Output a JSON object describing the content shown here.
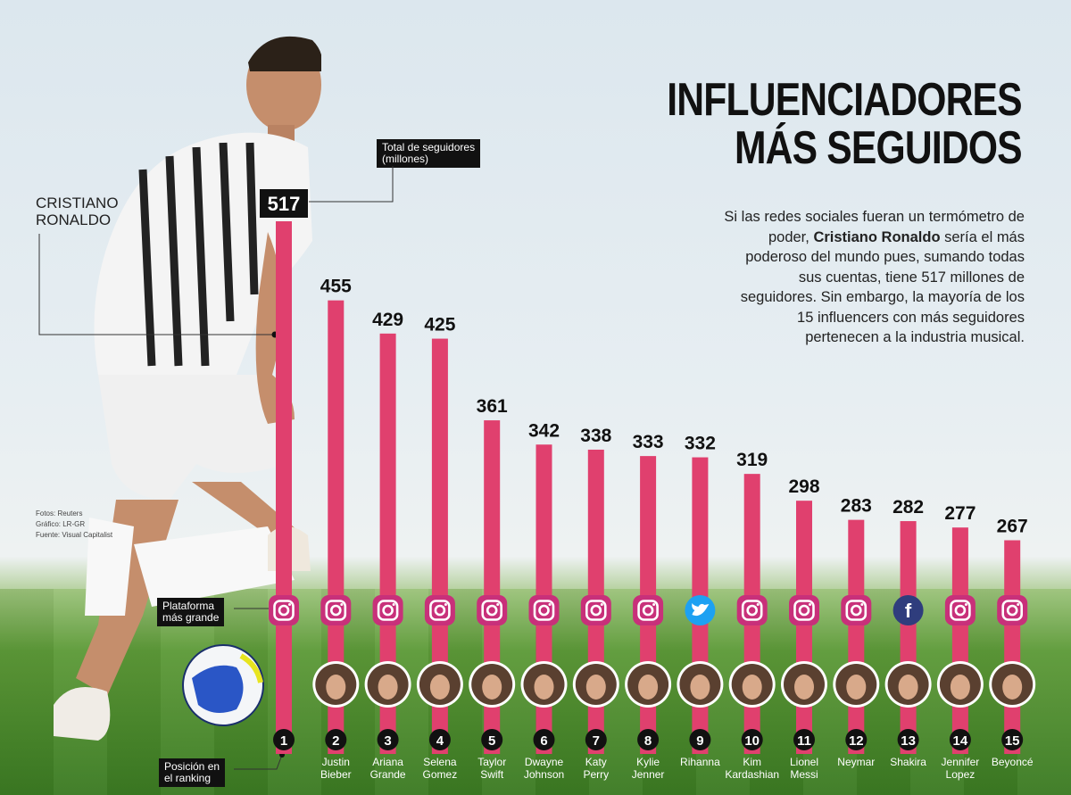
{
  "title": {
    "line1": "INFLUENCIADORES",
    "line2": "MÁS SEGUIDOS"
  },
  "intro": {
    "before": "Si las redes sociales fueran un termómetro de poder,",
    "bold": "Cristiano Ronaldo",
    "after": "sería el más poderoso del mundo pues, sumando todas sus cuentas, tiene 517 millones de seguidores. Sin embargo, la mayoría de los 15 influencers con más seguidores pertenecen a la industria musical."
  },
  "callouts": {
    "followers_line1": "Total de seguidores",
    "followers_line2": "(millones)",
    "platform_line1": "Plataforma",
    "platform_line2": "más grande",
    "rank_line1": "Posición en",
    "rank_line2": "el ranking",
    "hero_line1": "CRISTIANO",
    "hero_line2": "RONALDO"
  },
  "credits": [
    "Fotos: Reuters",
    "Gráfico: LR-GR",
    "Fuente: Visual Capitalist"
  ],
  "colors": {
    "bar": "#e0406e",
    "instagram": "#c8307a",
    "twitter": "#1da1f2",
    "facebook": "#2f3d7d",
    "rank_badge": "#111111"
  },
  "chart_data": {
    "type": "bar",
    "ylabel": "Total de seguidores (millones)",
    "categories": [
      "1",
      "2",
      "3",
      "4",
      "5",
      "6",
      "7",
      "8",
      "9",
      "10",
      "11",
      "12",
      "13",
      "14",
      "15"
    ],
    "names": [
      [
        "",
        ""
      ],
      [
        "Justin",
        "Bieber"
      ],
      [
        "Ariana",
        "Grande"
      ],
      [
        "Selena",
        "Gomez"
      ],
      [
        "Taylor",
        "Swift"
      ],
      [
        "Dwayne",
        "Johnson"
      ],
      [
        "Katy",
        "Perry"
      ],
      [
        "Kylie",
        "Jenner"
      ],
      [
        "Rihanna",
        ""
      ],
      [
        "Kim",
        "Kardashian"
      ],
      [
        "Lionel",
        "Messi"
      ],
      [
        "Neymar",
        ""
      ],
      [
        "Shakira",
        ""
      ],
      [
        "Jennifer",
        "Lopez"
      ],
      [
        "Beyoncé",
        ""
      ]
    ],
    "values": [
      517,
      455,
      429,
      425,
      361,
      342,
      338,
      333,
      332,
      319,
      298,
      283,
      282,
      277,
      267
    ],
    "platforms": [
      "instagram-icon",
      "instagram-icon",
      "instagram-icon",
      "instagram-icon",
      "instagram-icon",
      "instagram-icon",
      "instagram-icon",
      "instagram-icon",
      "twitter-icon",
      "instagram-icon",
      "instagram-icon",
      "instagram-icon",
      "facebook-icon",
      "instagram-icon",
      "instagram-icon"
    ],
    "platform_glyphs": {
      "facebook-icon": "f"
    }
  }
}
